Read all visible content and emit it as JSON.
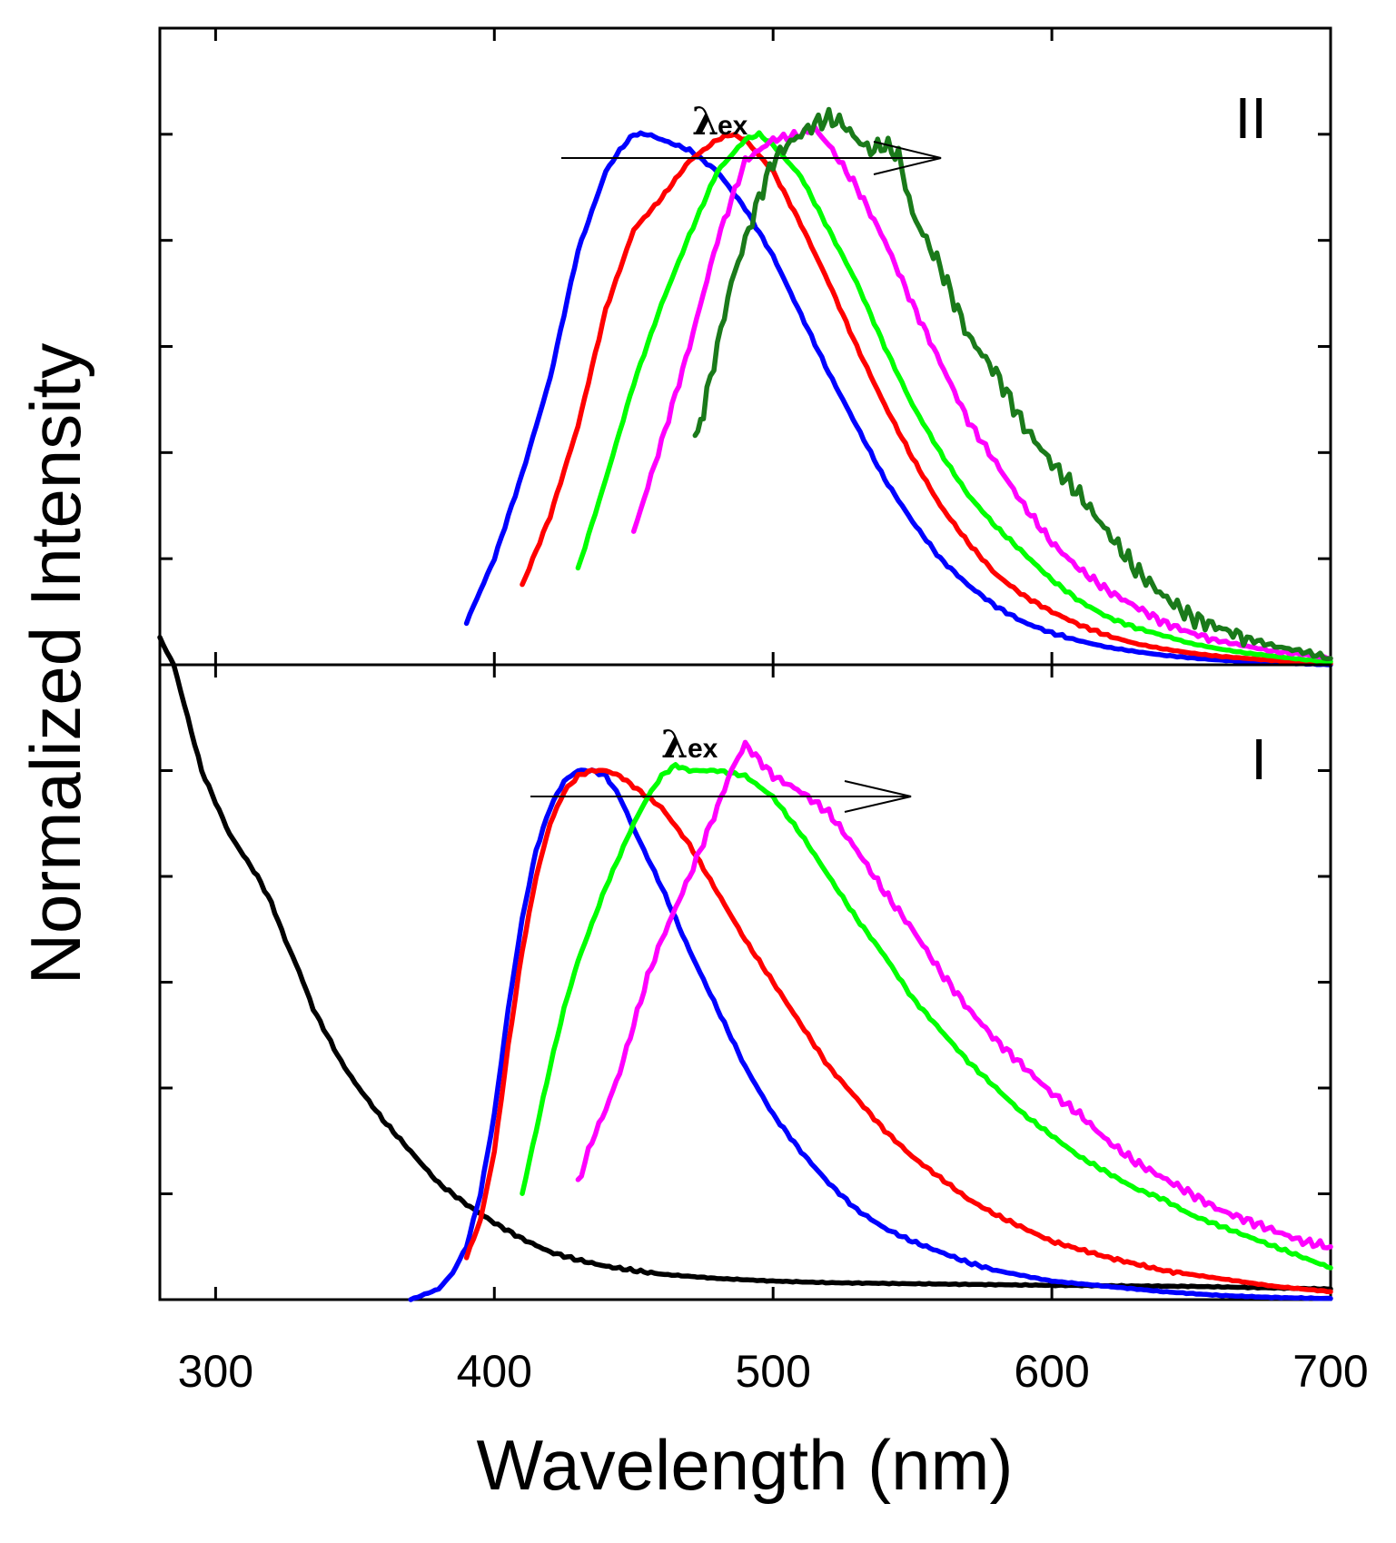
{
  "chart_data": {
    "type": "line",
    "xlabel": "Wavelength (nm)",
    "ylabel": "Normalized Intensity",
    "xlim": [
      280,
      700
    ],
    "xticks": [
      "300",
      "400",
      "500",
      "600",
      "700"
    ],
    "panels": [
      {
        "label": "II",
        "arrow_label": "λ",
        "arrow_label_sub": "ex",
        "ylim": [
          0,
          1.2
        ],
        "series": [
          {
            "name": "blue",
            "color": "#0000ff",
            "x": [
              390,
              400,
              410,
              420,
              430,
              440,
              445,
              450,
              455,
              460,
              470,
              480,
              490,
              500,
              510,
              520,
              530,
              540,
              550,
              560,
              570,
              580,
              590,
              600,
              610,
              620,
              630,
              640,
              650,
              660,
              670,
              680,
              690,
              700
            ],
            "y": [
              0.08,
              0.2,
              0.36,
              0.54,
              0.78,
              0.93,
              0.97,
              1.0,
              1.0,
              0.99,
              0.97,
              0.93,
              0.86,
              0.77,
              0.66,
              0.55,
              0.45,
              0.35,
              0.27,
              0.2,
              0.15,
              0.11,
              0.08,
              0.06,
              0.045,
              0.033,
              0.025,
              0.018,
              0.013,
              0.009,
              0.006,
              0.004,
              0.002,
              0.0
            ]
          },
          {
            "name": "red",
            "color": "#ff0000",
            "x": [
              410,
              420,
              430,
              440,
              450,
              460,
              470,
              480,
              485,
              490,
              500,
              510,
              520,
              530,
              540,
              550,
              560,
              570,
              580,
              590,
              600,
              610,
              620,
              630,
              640,
              650,
              660,
              670,
              680,
              690,
              700
            ],
            "y": [
              0.15,
              0.28,
              0.45,
              0.67,
              0.82,
              0.88,
              0.95,
              0.99,
              1.0,
              0.99,
              0.93,
              0.83,
              0.72,
              0.6,
              0.49,
              0.39,
              0.3,
              0.23,
              0.17,
              0.13,
              0.1,
              0.075,
              0.055,
              0.04,
              0.03,
              0.022,
              0.016,
              0.012,
              0.008,
              0.005,
              0.002
            ]
          },
          {
            "name": "green",
            "color": "#00ff00",
            "x": [
              430,
              440,
              450,
              460,
              470,
              480,
              490,
              495,
              500,
              510,
              520,
              530,
              540,
              550,
              560,
              570,
              580,
              590,
              600,
              610,
              620,
              630,
              640,
              650,
              660,
              670,
              680,
              690,
              700
            ],
            "y": [
              0.18,
              0.35,
              0.53,
              0.68,
              0.81,
              0.93,
              0.99,
              1.0,
              0.98,
              0.92,
              0.82,
              0.72,
              0.6,
              0.49,
              0.4,
              0.32,
              0.26,
              0.21,
              0.16,
              0.12,
              0.09,
              0.07,
              0.055,
              0.04,
              0.03,
              0.022,
              0.016,
              0.01,
              0.006
            ]
          },
          {
            "name": "magenta",
            "color": "#ff00ff",
            "x": [
              450,
              460,
              470,
              480,
              490,
              500,
              510,
              515,
              520,
              530,
              540,
              550,
              560,
              570,
              580,
              590,
              600,
              610,
              620,
              630,
              640,
              650,
              660,
              670,
              680,
              690,
              700
            ],
            "y": [
              0.25,
              0.42,
              0.6,
              0.8,
              0.95,
              0.99,
              1.0,
              1.01,
              0.98,
              0.9,
              0.8,
              0.68,
              0.57,
              0.46,
              0.38,
              0.3,
              0.23,
              0.18,
              0.14,
              0.11,
              0.08,
              0.06,
              0.045,
              0.035,
              0.025,
              0.02,
              0.012
            ]
          },
          {
            "name": "dark green",
            "color": "#1a7a1a",
            "x": [
              472,
              475,
              480,
              485,
              490,
              495,
              500,
              505,
              510,
              515,
              520,
              525,
              530,
              535,
              540,
              545,
              550,
              560,
              570,
              580,
              590,
              600,
              610,
              620,
              630,
              640,
              650,
              660,
              670,
              680,
              690,
              700
            ],
            "y": [
              0.42,
              0.48,
              0.6,
              0.72,
              0.8,
              0.88,
              0.95,
              0.98,
              1.0,
              1.02,
              1.03,
              1.02,
              0.99,
              0.97,
              0.98,
              0.96,
              0.85,
              0.75,
              0.62,
              0.55,
              0.45,
              0.38,
              0.32,
              0.25,
              0.18,
              0.13,
              0.09,
              0.07,
              0.05,
              0.035,
              0.025,
              0.012
            ]
          }
        ]
      },
      {
        "label": "I",
        "arrow_label": "λ",
        "arrow_label_sub": "ex",
        "ylim": [
          0,
          1.2
        ],
        "series": [
          {
            "name": "black",
            "color": "#000000",
            "x": [
              280,
              285,
              290,
              295,
              300,
              305,
              310,
              315,
              320,
              325,
              330,
              335,
              340,
              345,
              350,
              360,
              370,
              380,
              390,
              400,
              410,
              420,
              430,
              440,
              450,
              460,
              480,
              500,
              520,
              550,
              600,
              650,
              700
            ],
            "y": [
              1.25,
              1.2,
              1.1,
              1.0,
              0.94,
              0.88,
              0.84,
              0.8,
              0.75,
              0.68,
              0.62,
              0.55,
              0.5,
              0.45,
              0.41,
              0.34,
              0.28,
              0.22,
              0.18,
              0.145,
              0.115,
              0.09,
              0.075,
              0.063,
              0.055,
              0.048,
              0.04,
              0.035,
              0.032,
              0.03,
              0.027,
              0.025,
              0.02
            ]
          },
          {
            "name": "blue",
            "color": "#0000ff",
            "x": [
              370,
              375,
              380,
              385,
              390,
              395,
              400,
              405,
              410,
              415,
              420,
              425,
              430,
              435,
              440,
              445,
              450,
              460,
              470,
              480,
              490,
              500,
              510,
              520,
              530,
              540,
              550,
              560,
              570,
              580,
              590,
              600,
              620,
              640,
              660,
              680,
              700
            ],
            "y": [
              0.0,
              0.01,
              0.02,
              0.05,
              0.1,
              0.2,
              0.35,
              0.55,
              0.72,
              0.85,
              0.93,
              0.98,
              1.0,
              1.0,
              0.99,
              0.95,
              0.89,
              0.78,
              0.66,
              0.55,
              0.44,
              0.35,
              0.28,
              0.22,
              0.17,
              0.135,
              0.11,
              0.09,
              0.07,
              0.055,
              0.045,
              0.035,
              0.025,
              0.015,
              0.008,
              0.004,
              0.002
            ]
          },
          {
            "name": "red",
            "color": "#ff0000",
            "x": [
              390,
              395,
              400,
              405,
              410,
              415,
              420,
              425,
              430,
              435,
              440,
              445,
              450,
              460,
              470,
              480,
              490,
              500,
              510,
              520,
              530,
              540,
              550,
              560,
              570,
              580,
              590,
              600,
              620,
              640,
              660,
              680,
              700
            ],
            "y": [
              0.08,
              0.15,
              0.28,
              0.48,
              0.66,
              0.8,
              0.9,
              0.96,
              0.99,
              1.0,
              1.0,
              0.99,
              0.97,
              0.93,
              0.86,
              0.77,
              0.68,
              0.6,
              0.52,
              0.44,
              0.38,
              0.32,
              0.27,
              0.23,
              0.19,
              0.16,
              0.135,
              0.11,
              0.08,
              0.055,
              0.04,
              0.025,
              0.015
            ]
          },
          {
            "name": "green",
            "color": "#00ff00",
            "x": [
              410,
              415,
              420,
              425,
              430,
              440,
              450,
              455,
              460,
              465,
              470,
              480,
              490,
              500,
              510,
              520,
              530,
              540,
              550,
              560,
              570,
              580,
              590,
              600,
              610,
              620,
              630,
              640,
              650,
              660,
              670,
              680,
              690,
              700
            ],
            "y": [
              0.2,
              0.32,
              0.44,
              0.55,
              0.64,
              0.78,
              0.9,
              0.95,
              0.99,
              1.01,
              1.0,
              1.0,
              0.99,
              0.95,
              0.88,
              0.8,
              0.72,
              0.65,
              0.57,
              0.51,
              0.45,
              0.4,
              0.35,
              0.31,
              0.27,
              0.24,
              0.21,
              0.19,
              0.16,
              0.14,
              0.12,
              0.1,
              0.08,
              0.06
            ]
          },
          {
            "name": "magenta",
            "color": "#ff00ff",
            "x": [
              430,
              435,
              440,
              445,
              450,
              455,
              460,
              470,
              480,
              485,
              490,
              495,
              500,
              510,
              520,
              530,
              540,
              550,
              560,
              570,
              580,
              590,
              600,
              610,
              620,
              630,
              640,
              650,
              660,
              670,
              680,
              690,
              700
            ],
            "y": [
              0.22,
              0.3,
              0.36,
              0.43,
              0.52,
              0.61,
              0.68,
              0.8,
              0.93,
              1.0,
              1.05,
              1.02,
              0.99,
              0.96,
              0.92,
              0.85,
              0.77,
              0.7,
              0.62,
              0.55,
              0.49,
              0.44,
              0.39,
              0.35,
              0.3,
              0.26,
              0.23,
              0.2,
              0.17,
              0.15,
              0.13,
              0.11,
              0.1
            ]
          }
        ]
      }
    ]
  }
}
